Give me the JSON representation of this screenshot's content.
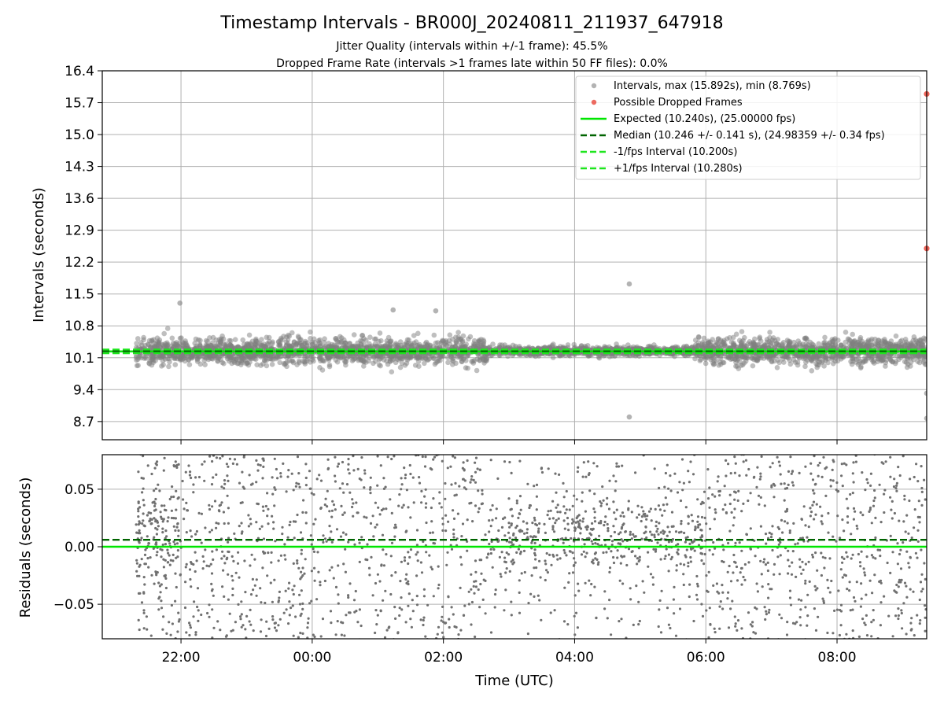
{
  "figure": {
    "title": "Timestamp Intervals - BR000J_20240811_211937_647918",
    "subtitle_1": "Jitter Quality (intervals within +/-1 frame): 45.5%",
    "subtitle_2": "Dropped Frame Rate (intervals >1 frames late within 50 FF files): 0.0%"
  },
  "chart_data": [
    {
      "type": "scatter",
      "name": "intervals-panel",
      "xlabel": "",
      "ylabel": "Intervals (seconds)",
      "x_range": [
        "2024-08-11 20:48",
        "2024-08-12 09:22"
      ],
      "ylim": [
        8.3,
        16.4
      ],
      "y_ticks": [
        8.7,
        9.4,
        10.1,
        10.8,
        11.5,
        12.2,
        12.9,
        13.6,
        14.3,
        15.0,
        15.7,
        16.4
      ],
      "y_tick_labels": [
        "8.7",
        "9.4",
        "10.1",
        "10.8",
        "11.5",
        "12.2",
        "12.9",
        "13.6",
        "14.3",
        "15.0",
        "15.7",
        "16.4"
      ],
      "x_ticks": [
        "22:00",
        "00:00",
        "02:00",
        "04:00",
        "06:00",
        "08:00"
      ],
      "grid": true,
      "legend_position": "top-right",
      "series": [
        {
          "name": "Intervals, max (15.892s), min (8.769s)",
          "kind": "scatter",
          "color": "#808080",
          "description": "dense cloud of about 4000 points between 21:19 and 09:22",
          "mean": 10.246,
          "std": 0.141,
          "max": 15.892,
          "min": 8.769,
          "notable_points": [
            {
              "x": "2024-08-11 21:59",
              "y": 11.3
            },
            {
              "x": "2024-08-12 01:14",
              "y": 11.15
            },
            {
              "x": "2024-08-12 01:53",
              "y": 11.13
            },
            {
              "x": "2024-08-12 04:50",
              "y": 11.72
            },
            {
              "x": "2024-08-12 04:50",
              "y": 8.8
            },
            {
              "x": "2024-08-12 09:22",
              "y": 8.77
            },
            {
              "x": "2024-08-12 09:22",
              "y": 9.32
            }
          ]
        },
        {
          "name": "Possible Dropped Frames",
          "kind": "scatter",
          "color": "#e8463a",
          "points": [
            {
              "x": "2024-08-12 09:22",
              "y": 15.892
            },
            {
              "x": "2024-08-12 09:22",
              "y": 12.5
            }
          ]
        },
        {
          "name": "Expected (10.240s), (25.00000 fps)",
          "kind": "hline",
          "y": 10.24,
          "color": "#00e600",
          "style": "solid"
        },
        {
          "name": "Median (10.246 +/- 0.141 s), (24.98359 +/- 0.34 fps)",
          "kind": "hline",
          "y": 10.246,
          "color": "#006400",
          "style": "dashed"
        },
        {
          "name": "-1/fps Interval (10.200s)",
          "kind": "hline",
          "y": 10.2,
          "color": "#1ee61e",
          "style": "dashed"
        },
        {
          "name": "+1/fps Interval (10.280s)",
          "kind": "hline",
          "y": 10.28,
          "color": "#1ee61e",
          "style": "dashed"
        }
      ]
    },
    {
      "type": "scatter",
      "name": "residuals-panel",
      "xlabel": "Time (UTC)",
      "ylabel": "Residuals (seconds)",
      "x_range": [
        "2024-08-11 20:48",
        "2024-08-12 09:22"
      ],
      "ylim": [
        -0.08,
        0.08
      ],
      "y_ticks": [
        -0.05,
        0.0,
        0.05
      ],
      "y_tick_labels": [
        "−0.05",
        "0.00",
        "0.05"
      ],
      "x_ticks": [
        "22:00",
        "00:00",
        "02:00",
        "04:00",
        "06:00",
        "08:00"
      ],
      "grid": true,
      "series": [
        {
          "name": "residuals",
          "kind": "scatter",
          "color": "#707070",
          "description": "small points spread across the full range, denser near 0.01 between 02:40 and 06:00"
        },
        {
          "name": "zero",
          "kind": "hline",
          "y": 0.0,
          "color": "#00e600",
          "style": "solid"
        },
        {
          "name": "median offset",
          "kind": "hline",
          "y": 0.006,
          "color": "#006400",
          "style": "dashed"
        }
      ]
    }
  ]
}
